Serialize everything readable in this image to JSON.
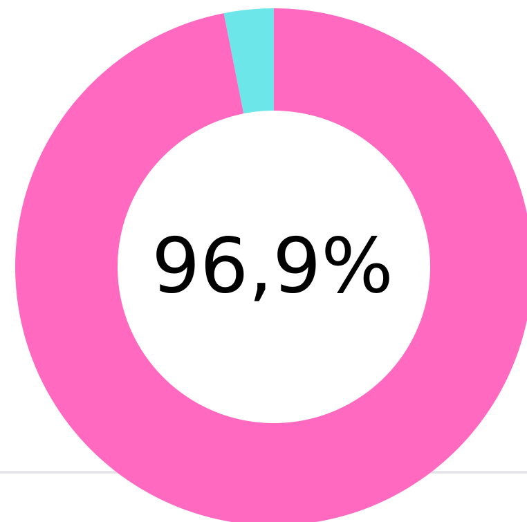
{
  "chart_data": {
    "type": "donut",
    "values": [
      96.9,
      3.1
    ],
    "value_labels": [
      "96,9%",
      null
    ],
    "colors": [
      "#ff69c0",
      "#6ce6e8"
    ]
  }
}
